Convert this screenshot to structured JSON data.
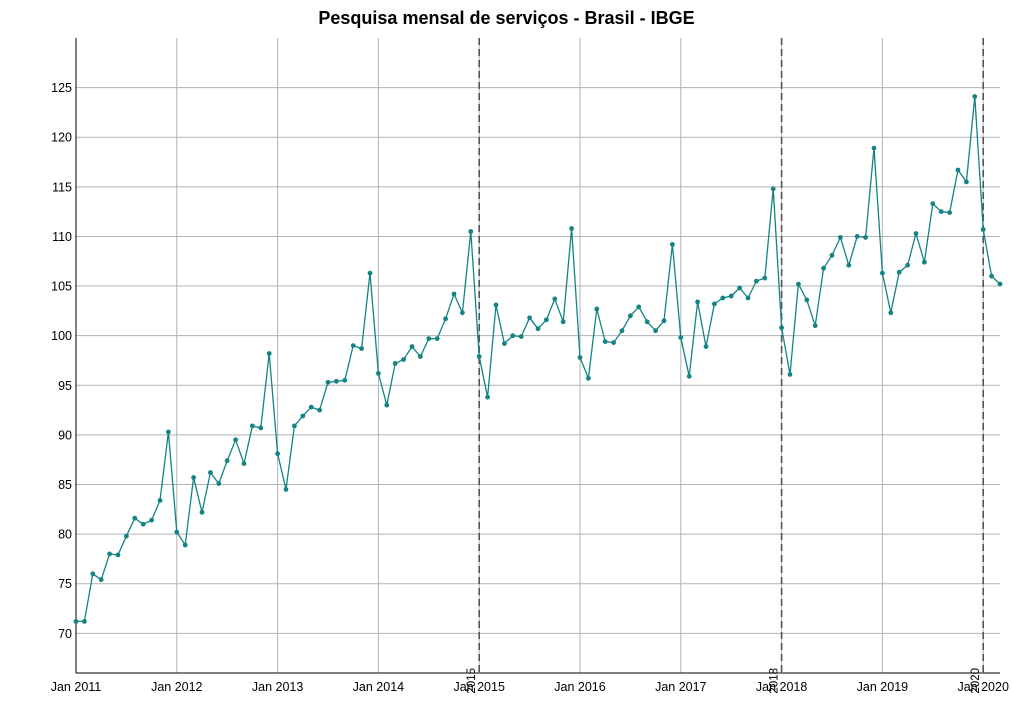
{
  "chart_data": {
    "type": "line",
    "title": "Pesquisa mensal de serviços - Brasil - IBGE",
    "xlabel": "",
    "ylabel": "",
    "ylim": [
      66,
      130
    ],
    "xlim": [
      "2011-01",
      "2020-03"
    ],
    "grid": true,
    "colors": {
      "series": "#138383",
      "grid": "#b3b3b3",
      "refline": "#555555",
      "axis": "#000000"
    },
    "x_ticks": [
      "Jan 2011",
      "Jan 2012",
      "Jan 2013",
      "Jan 2014",
      "Jan 2015",
      "Jan 2016",
      "Jan 2017",
      "Jan 2018",
      "Jan 2019",
      "Jan 2020"
    ],
    "y_ticks": [
      "70",
      "75",
      "80",
      "85",
      "90",
      "95",
      "100",
      "105",
      "110",
      "115",
      "120",
      "125"
    ],
    "reference_lines": [
      {
        "x": "2015-01",
        "label": "2015"
      },
      {
        "x": "2018-01",
        "label": "2018"
      },
      {
        "x": "2020-01",
        "label": "2020"
      }
    ],
    "series": [
      {
        "start": "2011-01",
        "values": [
          71.2,
          71.2,
          76.0,
          75.4,
          78.0,
          77.9,
          79.8,
          81.6,
          81.0,
          81.4,
          83.4,
          90.3,
          80.2,
          78.9,
          85.7,
          82.2,
          86.2,
          85.1,
          87.4,
          89.5,
          87.1,
          90.9,
          90.7,
          98.2,
          88.1,
          84.5,
          90.9,
          91.9,
          92.8,
          92.5,
          95.3,
          95.4,
          95.5,
          99.0,
          98.7,
          106.3,
          96.2,
          93.0,
          97.2,
          97.6,
          98.9,
          97.9,
          99.7,
          99.7,
          101.7,
          104.2,
          102.3,
          110.5,
          97.9,
          93.8,
          103.1,
          99.2,
          100.0,
          99.9,
          101.8,
          100.7,
          101.6,
          103.7,
          101.4,
          110.8,
          97.8,
          95.7,
          102.7,
          99.4,
          99.3,
          100.5,
          102.0,
          102.9,
          101.4,
          100.5,
          101.5,
          109.2,
          99.8,
          95.9,
          103.4,
          98.9,
          103.2,
          103.8,
          104.0,
          104.8,
          103.8,
          105.5,
          105.8,
          114.8,
          100.8,
          96.1,
          105.2,
          103.6,
          101.0,
          106.8,
          108.1,
          109.9,
          107.1,
          110.0,
          109.9,
          118.9,
          106.3,
          102.3,
          106.4,
          107.1,
          110.3,
          107.4,
          113.3,
          112.5,
          112.4,
          116.7,
          115.5,
          124.1,
          110.7,
          106.0,
          105.2
        ]
      }
    ]
  }
}
